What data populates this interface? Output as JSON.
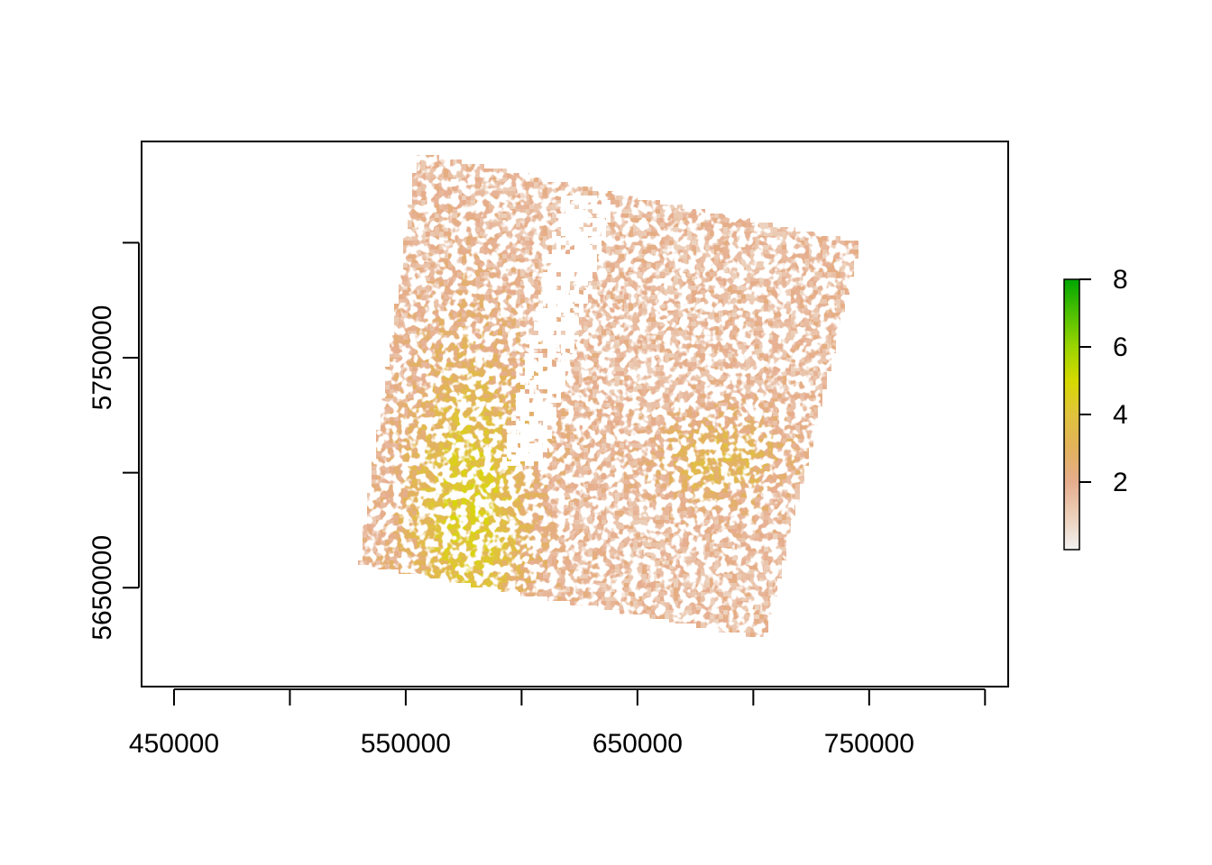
{
  "chart_data": {
    "type": "heatmap",
    "title": "",
    "xlabel": "",
    "ylabel": "",
    "x_range": [
      436000,
      810000
    ],
    "y_range": [
      5607000,
      5844000
    ],
    "x_ticks": [
      450000,
      500000,
      550000,
      600000,
      650000,
      700000,
      750000,
      800000
    ],
    "x_tick_labels": [
      "450000",
      "550000",
      "650000",
      "750000"
    ],
    "y_ticks": [
      5650000,
      5700000,
      5750000,
      5800000
    ],
    "y_tick_labels": [
      "5650000",
      "5750000"
    ],
    "raster_footprint": [
      [
        555000,
        5839000
      ],
      [
        746000,
        5800000
      ],
      [
        705000,
        5628000
      ],
      [
        530000,
        5660000
      ]
    ],
    "raster_nodata_strip": [
      [
        618000,
        5822000
      ],
      [
        640000,
        5818000
      ],
      [
        608000,
        5700000
      ],
      [
        592000,
        5704000
      ]
    ],
    "legend": {
      "placement": "right",
      "range": [
        0,
        8
      ],
      "ticks": [
        2,
        4,
        6,
        8
      ],
      "tick_labels": [
        "2",
        "4",
        "6",
        "8"
      ],
      "colors": [
        "#f2f2f2",
        "#eccfb9",
        "#e6ad8e",
        "#e2b25c",
        "#e0c33c",
        "#d6d900",
        "#9bd400",
        "#4ec000",
        "#00a600"
      ]
    }
  }
}
